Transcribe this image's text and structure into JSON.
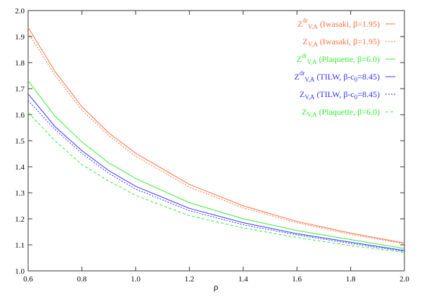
{
  "chart_data": {
    "type": "line",
    "title": "",
    "xlabel": "ρ",
    "ylabel": "",
    "xlim": [
      0.6,
      2.0
    ],
    "ylim": [
      1.0,
      2.0
    ],
    "xticks": [
      "0.6",
      "0.8",
      "1.0",
      "1.2",
      "1.4",
      "1.6",
      "1.8",
      "2.0"
    ],
    "yticks": [
      "1.0",
      "1.1",
      "1.2",
      "1.3",
      "1.4",
      "1.5",
      "1.6",
      "1.7",
      "1.8",
      "1.9",
      "2.0"
    ],
    "legend_position": "top-right",
    "x": [
      0.6,
      0.7,
      0.8,
      0.9,
      1.0,
      1.2,
      1.4,
      1.6,
      1.8,
      2.0
    ],
    "series": [
      {
        "name": "Z^dr_V,A (Iwasaki, β=1.95)",
        "sym": "Z",
        "sup": "dr",
        "sub": "V,A",
        "pre": " (Iwasaki, β=1.95)",
        "presub": "",
        "post": "",
        "color": "#ff7040",
        "dash": "solid",
        "values": [
          1.935,
          1.766,
          1.631,
          1.53,
          1.452,
          1.332,
          1.25,
          1.19,
          1.145,
          1.107
        ]
      },
      {
        "name": "Z_V,A (Iwasaki, β=1.95)",
        "sym": "Z",
        "sup": "",
        "sub": "V,A",
        "pre": " (Iwasaki, β=1.95)",
        "presub": "",
        "post": "",
        "color": "#ff7040",
        "dash": "dotted",
        "values": [
          1.915,
          1.752,
          1.618,
          1.52,
          1.44,
          1.322,
          1.242,
          1.185,
          1.14,
          1.104
        ]
      },
      {
        "name": "Z^dr_V,A (Plaquette, β=6.0)",
        "sym": "Z",
        "sup": "dr",
        "sub": "V,A",
        "pre": " (Plaquette, β=6.0)",
        "presub": "",
        "post": "",
        "color": "#33ee33",
        "dash": "solid",
        "values": [
          1.73,
          1.595,
          1.495,
          1.415,
          1.355,
          1.262,
          1.2,
          1.155,
          1.12,
          1.086
        ]
      },
      {
        "name": "Z^dr_V,A (TILW, β-c0=8.45)",
        "sym": "Z",
        "sup": "dr",
        "sub": "V,A",
        "pre": " (TILW, β-c",
        "presub": "0",
        "post": "=8.45)",
        "color": "#3333ff",
        "dash": "solid",
        "values": [
          1.68,
          1.554,
          1.462,
          1.385,
          1.325,
          1.24,
          1.185,
          1.143,
          1.11,
          1.078
        ]
      },
      {
        "name": "Z_V,A (TILW, β-c0=8.45)",
        "sym": "Z",
        "sup": "",
        "sub": "V,A",
        "pre": " (TILW, β-c",
        "presub": "0",
        "post": "=8.45)",
        "color": "#3333ff",
        "dash": "dotted",
        "values": [
          1.654,
          1.543,
          1.451,
          1.375,
          1.314,
          1.231,
          1.177,
          1.138,
          1.105,
          1.075
        ]
      },
      {
        "name": "Z_V,A (Plaquette, β=6.0)",
        "sym": "Z",
        "sup": "",
        "sub": "V,A",
        "pre": " (Plaquette, β=6.0)",
        "presub": "",
        "post": "",
        "color": "#33ee33",
        "dash": "dashed",
        "values": [
          1.608,
          1.5,
          1.408,
          1.345,
          1.29,
          1.212,
          1.165,
          1.128,
          1.097,
          1.071
        ]
      }
    ]
  }
}
